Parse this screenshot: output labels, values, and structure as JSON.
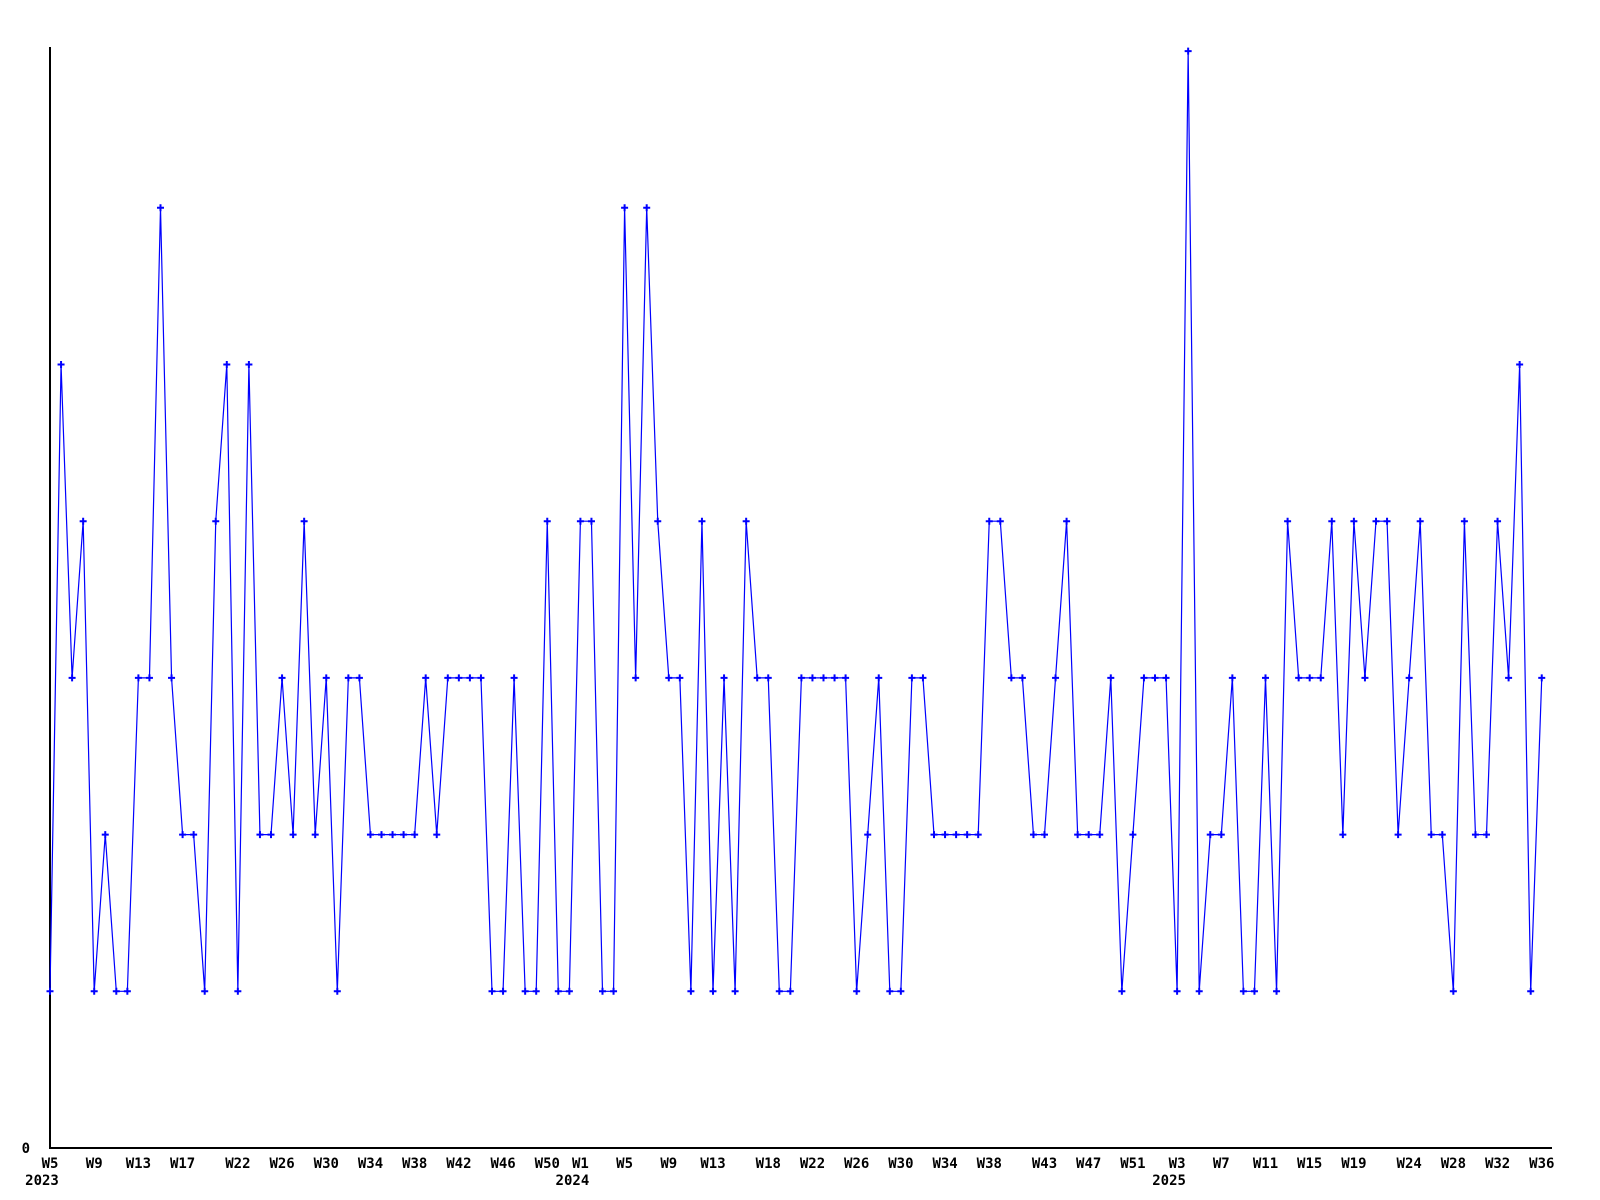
{
  "chart_data": {
    "type": "line",
    "title": "",
    "legend": false,
    "grid": false,
    "line_color": "#0000ff",
    "marker_style": "plus",
    "background_color": "#ffffff",
    "axis_color": "#000000",
    "x_axis": {
      "unit": "iso-week",
      "start": "2023-W5",
      "end": "2025-W36",
      "points_are_weekly": true,
      "tick_labels": [
        {
          "label": "W5",
          "week": 0
        },
        {
          "label": "W9",
          "week": 4
        },
        {
          "label": "W13",
          "week": 8
        },
        {
          "label": "W17",
          "week": 12
        },
        {
          "label": "W22",
          "week": 17
        },
        {
          "label": "W26",
          "week": 21
        },
        {
          "label": "W30",
          "week": 25
        },
        {
          "label": "W34",
          "week": 29
        },
        {
          "label": "W38",
          "week": 33
        },
        {
          "label": "W42",
          "week": 37
        },
        {
          "label": "W46",
          "week": 41
        },
        {
          "label": "W50",
          "week": 45
        },
        {
          "label": "W1",
          "week": 48
        },
        {
          "label": "W5",
          "week": 52
        },
        {
          "label": "W9",
          "week": 56
        },
        {
          "label": "W13",
          "week": 60
        },
        {
          "label": "W18",
          "week": 65
        },
        {
          "label": "W22",
          "week": 69
        },
        {
          "label": "W26",
          "week": 73
        },
        {
          "label": "W30",
          "week": 77
        },
        {
          "label": "W34",
          "week": 81
        },
        {
          "label": "W38",
          "week": 85
        },
        {
          "label": "W43",
          "week": 90
        },
        {
          "label": "W47",
          "week": 94
        },
        {
          "label": "W51",
          "week": 98
        },
        {
          "label": "W3",
          "week": 102
        },
        {
          "label": "W7",
          "week": 106
        },
        {
          "label": "W11",
          "week": 110
        },
        {
          "label": "W15",
          "week": 114
        },
        {
          "label": "W19",
          "week": 118
        },
        {
          "label": "W24",
          "week": 123
        },
        {
          "label": "W28",
          "week": 127
        },
        {
          "label": "W32",
          "week": 131
        },
        {
          "label": "W36",
          "week": 135
        }
      ],
      "year_labels": [
        {
          "label": "2023",
          "week": 0
        },
        {
          "label": "2024",
          "week": 48
        },
        {
          "label": "2025",
          "week": 102
        }
      ]
    },
    "y_axis": {
      "tick_labels": [
        "0"
      ],
      "min": 0,
      "max_value_in_data": 7
    },
    "values": [
      1,
      5,
      3,
      4,
      1,
      2,
      1,
      1,
      3,
      3,
      6,
      3,
      2,
      2,
      1,
      4,
      5,
      1,
      5,
      2,
      2,
      3,
      2,
      4,
      2,
      3,
      1,
      3,
      3,
      2,
      2,
      2,
      2,
      2,
      3,
      2,
      3,
      3,
      3,
      3,
      1,
      1,
      3,
      1,
      1,
      4,
      1,
      1,
      4,
      4,
      1,
      1,
      6,
      3,
      6,
      4,
      3,
      3,
      1,
      4,
      1,
      3,
      1,
      4,
      3,
      3,
      1,
      1,
      3,
      3,
      3,
      3,
      3,
      1,
      2,
      3,
      1,
      1,
      3,
      3,
      2,
      2,
      2,
      2,
      2,
      4,
      4,
      3,
      3,
      2,
      2,
      3,
      4,
      2,
      2,
      2,
      3,
      1,
      2,
      3,
      3,
      3,
      1,
      7,
      1,
      2,
      2,
      3,
      1,
      1,
      3,
      1,
      4,
      3,
      3,
      3,
      4,
      2,
      4,
      3,
      4,
      4,
      2,
      3,
      4,
      2,
      2,
      1,
      4,
      2,
      2,
      4,
      3,
      5,
      1,
      3
    ]
  }
}
